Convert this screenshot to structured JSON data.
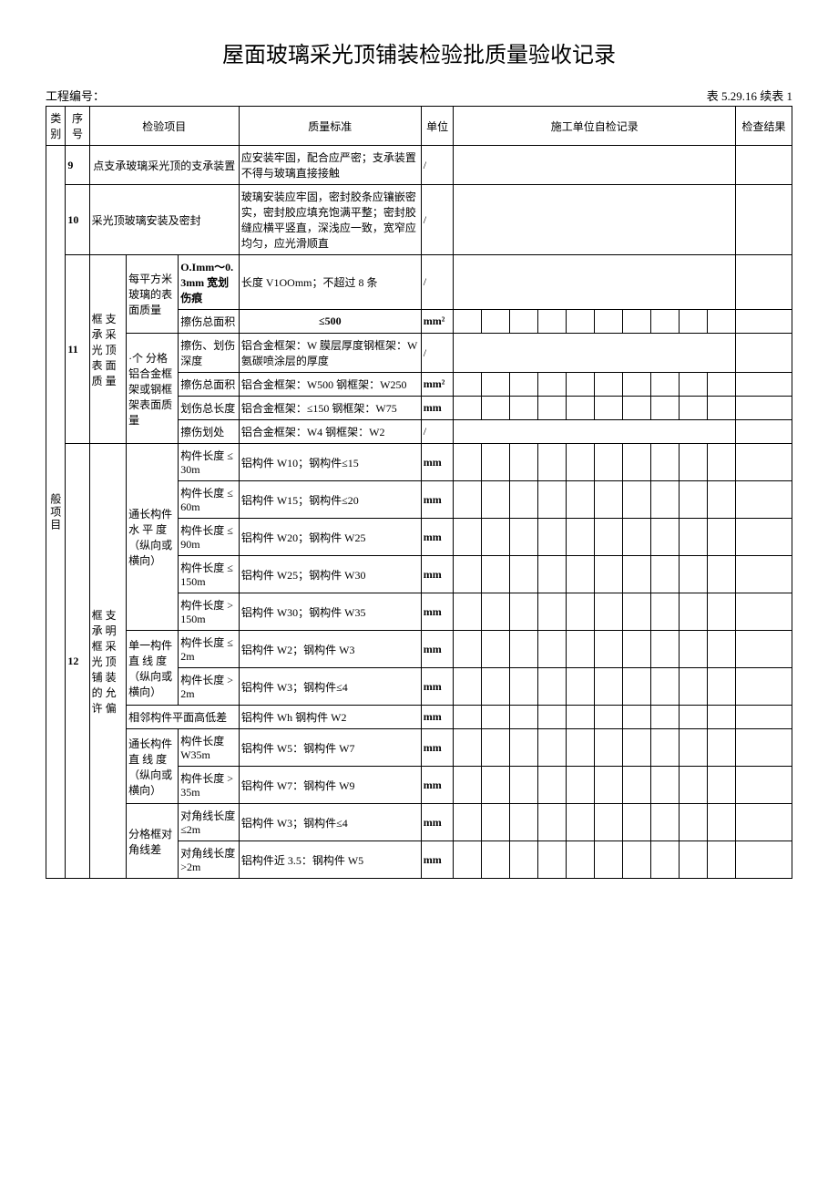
{
  "title": "屋面玻璃采光顶铺装检验批质量验收记录",
  "project_label": "工程编号：",
  "table_code": "表 5.29.16 续表 1",
  "head": {
    "category": "类别",
    "seq": "序号",
    "item": "检验项目",
    "standard": "质量标准",
    "unit": "单位",
    "self_check": "施工单位自检记录",
    "result": "检查结果"
  },
  "category_label": "般项目",
  "rows": {
    "r9": {
      "seq": "9",
      "item": "点支承玻璃采光顶的支承装置",
      "std": "应安装牢固，配合应严密；支承装置不得与玻璃直接接触",
      "unit": "/"
    },
    "r10": {
      "seq": "10",
      "item": "采光顶玻璃安装及密封",
      "std": "玻璃安装应牢固，密封胶条应镶嵌密实，密封胶应填充饱满平整；密封胶缝应横平竖直，深浅应一致，宽窄应均匀，应光滑顺直",
      "unit": "/"
    },
    "r11": {
      "seq": "11",
      "group": "框 支承 采光 顶表 面质 量",
      "g1": "每平方米玻璃的表面质量",
      "g1a_sub": "O.Imm～0.3mm 宽划伤痕",
      "g1a_std": "长度 V1OOmm；不超过 8 条",
      "g1a_unit": "/",
      "g1b_sub": "擦伤总面积",
      "g1b_std": "≤500",
      "g1b_unit": "mm²",
      "g2": "·个 分格铝合金框架或钢框架表面质量",
      "g2a_sub": "擦伤、划伤深度",
      "g2a_std": "铝合金框架：W 膜层厚度钢框架：W 氨碳喷涂层的厚度",
      "g2a_unit": "/",
      "g2b_sub": "擦伤总面积",
      "g2b_std": "铝合金框架：W500\n钢框架：W250",
      "g2b_unit": "mm²",
      "g2c_sub": "划伤总长度",
      "g2c_std": "铝合金框架：≤150\n钢框架：W75",
      "g2c_unit": "mm",
      "g2d_sub": "擦伤划处",
      "g2d_std": "铝合金框架：W4 钢框架：W2",
      "g2d_unit": "/"
    },
    "r12": {
      "seq": "12",
      "group": "框 支承 明框 采光 顶铺 装的 允许 偏",
      "g1": "通长构件水 平 度（纵向或横向）",
      "g1a_sub": "构件长度 ≤30m",
      "g1a_std": "铝构件 W10；钢构件≤15",
      "g1a_unit": "mm",
      "g1b_sub": "构件长度 ≤60m",
      "g1b_std": "铝构件 W15；钢构件≤20",
      "g1b_unit": "mm",
      "g1c_sub": "构件长度 ≤90m",
      "g1c_std": "铝构件 W20；钢构件 W25",
      "g1c_unit": "mm",
      "g1d_sub": "构件长度 ≤150m",
      "g1d_std": "铝构件 W25；钢构件 W30",
      "g1d_unit": "mm",
      "g1e_sub": "构件长度 >150m",
      "g1e_std": "铝构件 W30；钢构件 W35",
      "g1e_unit": "mm",
      "g2": "单一构件直 线 度（纵向或横向）",
      "g2a_sub": "构件长度 ≤2m",
      "g2a_std": "铝构件 W2；钢构件 W3",
      "g2a_unit": "mm",
      "g2b_sub": "构件长度 >2m",
      "g2b_std": "铝构件 W3；钢构件≤4",
      "g2b_unit": "mm",
      "g3": "相邻构件平面高低差",
      "g3_std": "铝构件 Wh 钢构件 W2",
      "g3_unit": "mm",
      "g4": "通长构件直 线 度（纵向或横向）",
      "g4a_sub": "构件长度 W35m",
      "g4a_std": "铝构件 W5：钢构件 W7",
      "g4a_unit": "mm",
      "g4b_sub": "构件长度 >35m",
      "g4b_std": "铝构件 W7：钢构件 W9",
      "g4b_unit": "mm",
      "g5": "分格框对角线差",
      "g5a_sub": "对角线长度 ≤2m",
      "g5a_std": "铝构件 W3；钢构件≤4",
      "g5a_unit": "mm",
      "g5b_sub": "对角线长度 >2m",
      "g5b_std": "铝构件近 3.5：钢构件 W5",
      "g5b_unit": "mm"
    }
  }
}
